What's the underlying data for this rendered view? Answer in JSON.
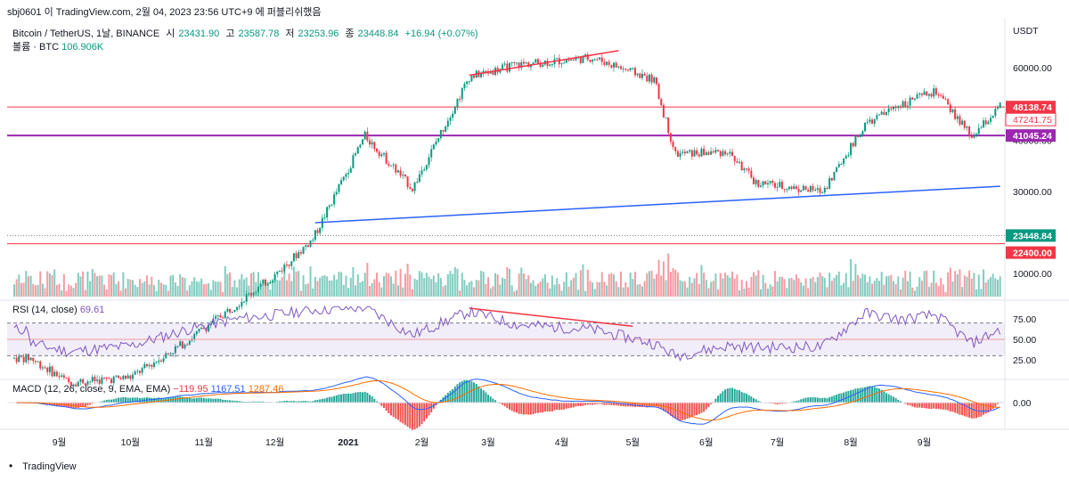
{
  "header": {
    "publisher": "sbj0601 이 TradingView.com, 2월 04, 2023 23:56 UTC+9 에 퍼블리쉬했음",
    "symbol": "Bitcoin / TetherUS, 1날, BINANCE",
    "open_label": "시",
    "open": "23431.90",
    "high_label": "고",
    "high": "23587.78",
    "low_label": "저",
    "low": "23253.96",
    "close_label": "종",
    "close": "23448.84",
    "change": "+16.94 (+0.07%)",
    "volume_label": "볼륨 · BTC",
    "volume": "106.906K"
  },
  "price_axis": {
    "currency": "USDT",
    "ticks": [
      "60000.00",
      "40000.00",
      "30000.00",
      "10000.00"
    ],
    "tags": [
      {
        "label": "48138.74",
        "color": "#f23645",
        "kind": "solid"
      },
      {
        "label": "47241.75",
        "color": "#f23645",
        "kind": "outline"
      },
      {
        "label": "41045.24",
        "color": "#9c27b0",
        "kind": "solid"
      },
      {
        "label": "23448.84",
        "color": "#089981",
        "kind": "solid"
      },
      {
        "label": "22400.00",
        "color": "#f23645",
        "kind": "solid"
      }
    ]
  },
  "rsi": {
    "label": "RSI (14, close)",
    "value": "69.61",
    "ticks": [
      "75.00",
      "50.00",
      "25.00"
    ]
  },
  "macd": {
    "label": "MACD (12, 26, close, 9, EMA, EMA)",
    "histogram": "−119.95",
    "macd": "1167.51",
    "signal": "1287.46",
    "ticks": [
      "0.00"
    ]
  },
  "time_axis": [
    "9월",
    "10월",
    "11월",
    "12월",
    "2021",
    "2월",
    "3월",
    "4월",
    "5월",
    "6월",
    "7월",
    "8월",
    "9월"
  ],
  "footer": {
    "brand": "TradingView"
  },
  "chart_data": {
    "type": "line",
    "title": "Bitcoin / TetherUS, 1날, BINANCE",
    "xlabel": "",
    "ylabel": "",
    "x": [
      "2020-08-20",
      "2020-09-05",
      "2020-10-01",
      "2020-10-25",
      "2020-11-15",
      "2020-12-01",
      "2020-12-17",
      "2021-01-08",
      "2021-01-28",
      "2021-02-21",
      "2021-03-13",
      "2021-04-14",
      "2021-05-10",
      "2021-05-19",
      "2021-06-10",
      "2021-06-22",
      "2021-07-20",
      "2021-08-07",
      "2021-08-22",
      "2021-09-06",
      "2021-09-21",
      "2021-10-03"
    ],
    "series": [
      {
        "values": [
          11800,
          10300,
          10600,
          13000,
          16000,
          18800,
          23000,
          41000,
          30500,
          57000,
          61000,
          63500,
          56000,
          37000,
          37500,
          31500,
          30000,
          43500,
          49000,
          52500,
          40700,
          48200
        ]
      }
    ],
    "ylim": [
      8500,
      68000
    ],
    "log_scale": true,
    "grid": false,
    "horizontal_levels": [
      48138.74,
      41045.24,
      23448.84,
      22400.0
    ],
    "trendlines": [
      {
        "from": [
          "2021-02-21",
          57500
        ],
        "to": [
          "2021-04-25",
          66000
        ],
        "color": "#f23645"
      },
      {
        "from": [
          "2020-12-18",
          25200
        ],
        "to": [
          "2021-10-03",
          30900
        ],
        "color": "#2962ff"
      }
    ],
    "rsi_divergence_line": {
      "from": [
        "2021-02-21",
        88
      ],
      "to": [
        "2021-05-01",
        66
      ]
    },
    "rsi_levels": [
      70,
      50,
      30
    ],
    "rsi_series": [
      45,
      35,
      42,
      62,
      75,
      80,
      86,
      89,
      55,
      84,
      68,
      62,
      45,
      30,
      42,
      40,
      41,
      82,
      74,
      80,
      45,
      62
    ]
  }
}
